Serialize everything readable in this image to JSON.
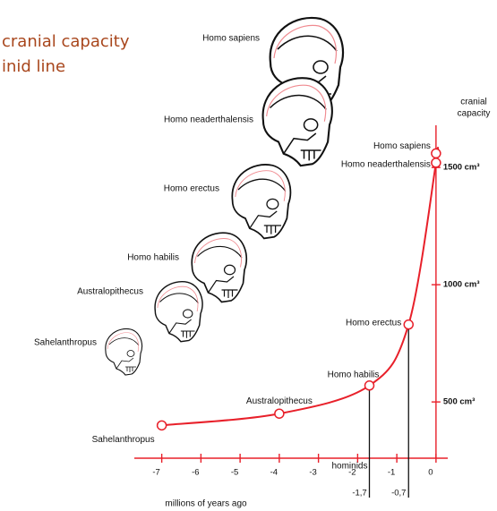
{
  "chart_data": {
    "type": "line",
    "title": [
      "cranial capacity",
      "inid line"
    ],
    "ylabel": [
      "cranial",
      "capacity"
    ],
    "xlabel": "millions of years ago",
    "annotation": "hominids",
    "illustrations": [
      "Homo sapiens",
      "Homo neaderthalensis",
      "Homo erectus",
      "Homo habilis",
      "Australopithecus",
      "Sahelanthropus"
    ],
    "x": [
      -7,
      -4,
      -1.7,
      -0.7,
      0,
      0
    ],
    "series": [
      {
        "color": "#e8202a",
        "values": [
          400,
          450,
          570,
          830,
          1520,
          1560
        ],
        "point_labels": [
          "Sahelanthropus",
          "Australopithecus",
          "Homo habilis",
          "Homo erectus",
          "Homo neaderthalensis",
          "Homo sapiens"
        ]
      }
    ],
    "xlim": [
      -7.7,
      0.3
    ],
    "ylim": [
      260,
      1680
    ],
    "xticks": [
      -7,
      -6,
      -5,
      -4,
      -3,
      -2,
      -1,
      0
    ],
    "marked_x": [
      {
        "value": -1.7,
        "label": "-1,7"
      },
      {
        "value": -0.7,
        "label": "-0,7"
      }
    ],
    "yticks": [
      {
        "value": 500,
        "label": "500 cm³"
      },
      {
        "value": 1000,
        "label": "1000 cm³"
      },
      {
        "value": 1500,
        "label": "1500 cm³"
      }
    ]
  }
}
